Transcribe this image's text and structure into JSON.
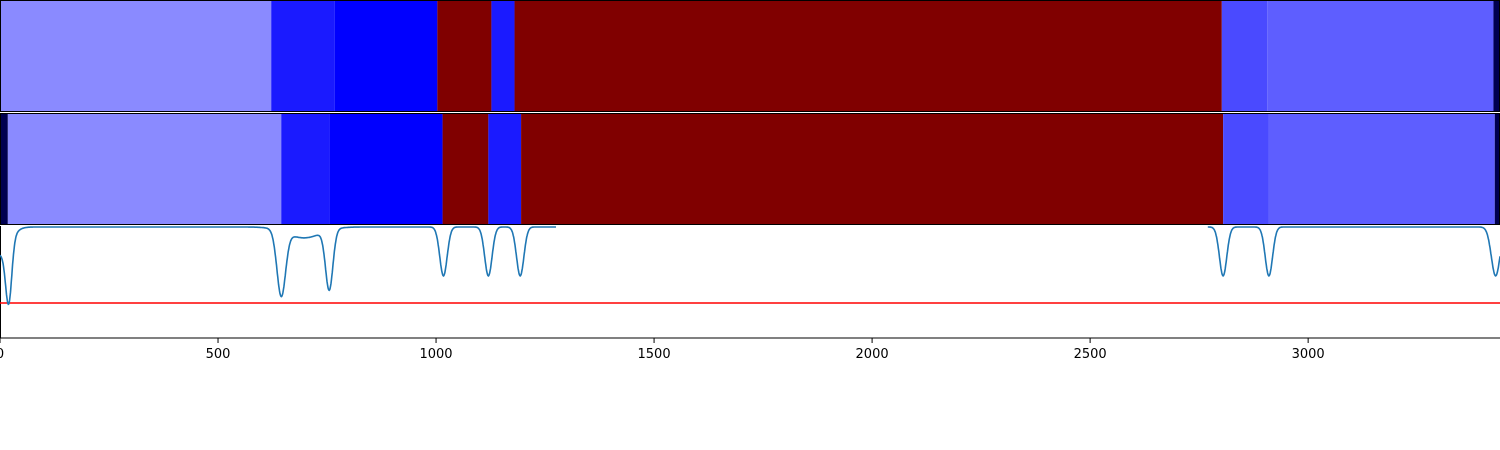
{
  "chart_data": {
    "type": "segmentation-comparison",
    "x_range": [
      0,
      3440
    ],
    "x_ticks": [
      0,
      500,
      1000,
      1500,
      2000,
      2500,
      3000
    ],
    "x_tick_labels": [
      "0",
      "500",
      "1000",
      "1500",
      "2000",
      "2500",
      "3000"
    ],
    "grid": false,
    "legend": "none",
    "tracks": [
      {
        "segments": [
          {
            "start": 0,
            "end": 622,
            "color": "#8a8aff"
          },
          {
            "start": 622,
            "end": 768,
            "color": "#1a1aff"
          },
          {
            "start": 768,
            "end": 1003,
            "color": "#0000ff"
          },
          {
            "start": 1003,
            "end": 1127,
            "color": "#800000"
          },
          {
            "start": 1127,
            "end": 1180,
            "color": "#1a1aff"
          },
          {
            "start": 1180,
            "end": 2802,
            "color": "#800000"
          },
          {
            "start": 2802,
            "end": 2906,
            "color": "#4a4aff"
          },
          {
            "start": 2906,
            "end": 3425,
            "color": "#5e5eff"
          },
          {
            "start": 3425,
            "end": 3440,
            "color": "#000050"
          }
        ]
      },
      {
        "segments": [
          {
            "start": 0,
            "end": 18,
            "color": "#000050"
          },
          {
            "start": 18,
            "end": 645,
            "color": "#8a8aff"
          },
          {
            "start": 645,
            "end": 755,
            "color": "#1a1aff"
          },
          {
            "start": 755,
            "end": 1015,
            "color": "#0000ff"
          },
          {
            "start": 1015,
            "end": 1120,
            "color": "#800000"
          },
          {
            "start": 1120,
            "end": 1195,
            "color": "#1a1aff"
          },
          {
            "start": 1195,
            "end": 2805,
            "color": "#800000"
          },
          {
            "start": 2805,
            "end": 2910,
            "color": "#4a4aff"
          },
          {
            "start": 2910,
            "end": 3428,
            "color": "#5e5eff"
          },
          {
            "start": 3428,
            "end": 3440,
            "color": "#000050"
          }
        ]
      }
    ],
    "signal": {
      "color": "#1f77b4",
      "baseline": 1.0,
      "y_range": [
        0.0,
        1.0
      ],
      "dips": [
        {
          "x": 0,
          "depth": 0.25,
          "width": 30
        },
        {
          "x": 20,
          "depth": 0.55,
          "width": 10
        },
        {
          "x": 645,
          "depth": 0.6,
          "width": 14
        },
        {
          "x": 697,
          "depth": 0.1,
          "width": 55
        },
        {
          "x": 755,
          "depth": 0.55,
          "width": 12
        },
        {
          "x": 1017,
          "depth": 0.45,
          "width": 12
        },
        {
          "x": 1120,
          "depth": 0.45,
          "width": 12
        },
        {
          "x": 1193,
          "depth": 0.45,
          "width": 12
        },
        {
          "x": 2805,
          "depth": 0.45,
          "width": 12
        },
        {
          "x": 2910,
          "depth": 0.45,
          "width": 12
        },
        {
          "x": 3430,
          "depth": 0.45,
          "width": 14
        }
      ]
    },
    "threshold": {
      "value": 0.3,
      "color": "#ff0000"
    }
  }
}
